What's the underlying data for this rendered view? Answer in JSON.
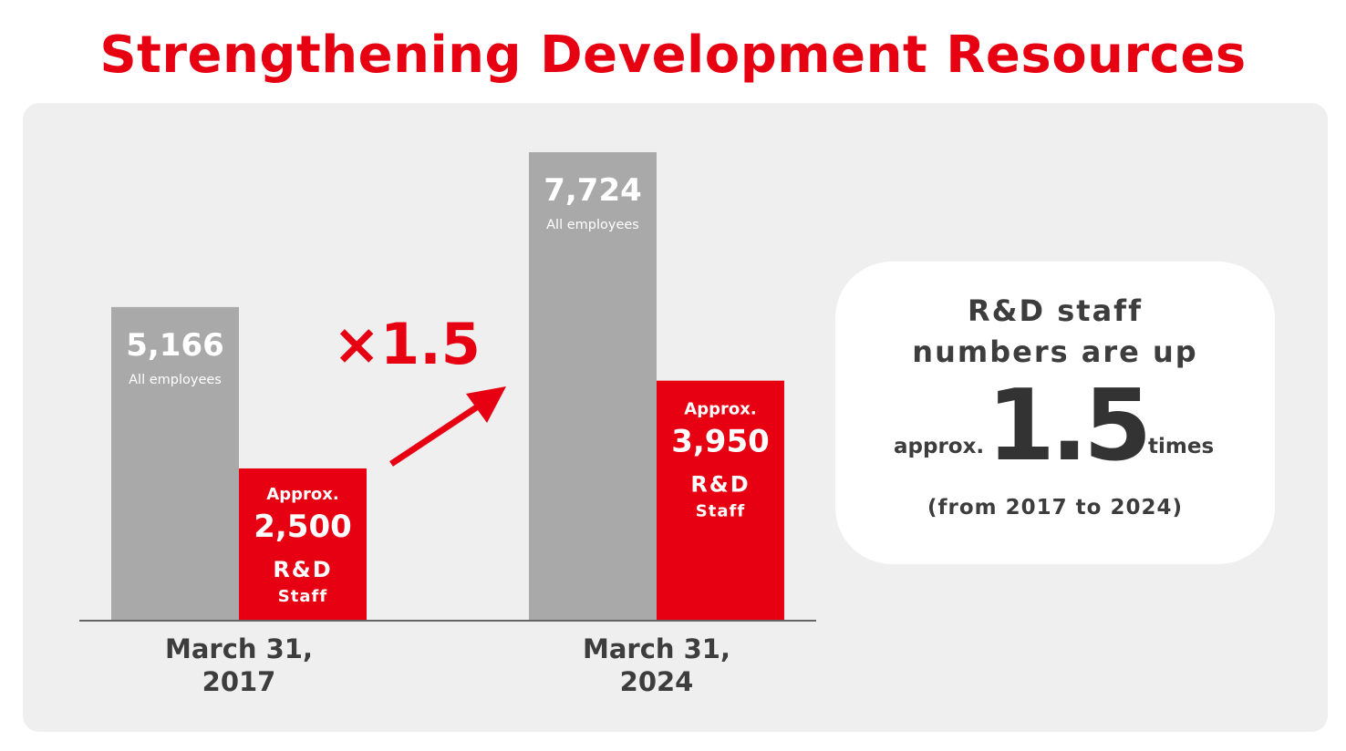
{
  "page": {
    "title": "Strengthening Development Resources"
  },
  "chart_data": {
    "type": "bar",
    "categories": [
      "March 31, 2017",
      "March 31, 2024"
    ],
    "category_lines": [
      [
        "March 31,",
        "2017"
      ],
      [
        "March 31,",
        "2024"
      ]
    ],
    "series": [
      {
        "name": "All employees",
        "values": [
          5166,
          7724
        ],
        "value_labels": [
          "5,166",
          "7,724"
        ],
        "color": "#a9a9a9"
      },
      {
        "name": "R&D Staff",
        "values": [
          2500,
          3950
        ],
        "value_labels": [
          "2,500",
          "3,950"
        ],
        "prefix": "Approx.",
        "name_lines": [
          "R&D",
          "Staff"
        ],
        "color": "#e60012"
      }
    ],
    "ylim": [
      0,
      7724
    ],
    "grid": false,
    "annotation": {
      "text": "×1.5",
      "color": "#e60012"
    }
  },
  "info": {
    "heading_line1": "R&D staff",
    "heading_line2": "numbers are up",
    "approx": "approx.",
    "multiplier": "1.5",
    "times": "times",
    "period": "(from 2017 to 2024)"
  },
  "colors": {
    "accent": "#e60012",
    "gray_bar": "#a9a9a9",
    "panel": "#efefef"
  }
}
